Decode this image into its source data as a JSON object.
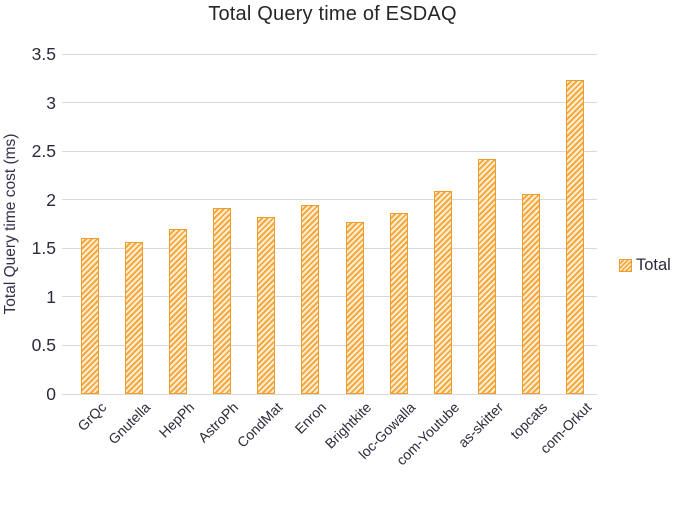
{
  "chart_data": {
    "type": "bar",
    "title": "Total Query time of ESDAQ",
    "ylabel": "Total Query time cost (ms)",
    "xlabel": "",
    "series_name": "Total",
    "categories": [
      "GrQc",
      "Gnutella",
      "HepPh",
      "AstroPh",
      "CondMat",
      "Enron",
      "Brightkite",
      "loc-Gowalla",
      "com-Youtube",
      "as-skitter",
      "topcats",
      "com-Orkut"
    ],
    "values": [
      1.61,
      1.57,
      1.7,
      1.92,
      1.82,
      1.95,
      1.77,
      1.86,
      2.09,
      2.42,
      2.06,
      3.23
    ],
    "ylim": [
      0,
      3.5
    ],
    "yticks": [
      {
        "value": 0,
        "label": "0"
      },
      {
        "value": 0.5,
        "label": "0.5"
      },
      {
        "value": 1,
        "label": "1"
      },
      {
        "value": 1.5,
        "label": "1.5"
      },
      {
        "value": 2,
        "label": "2"
      },
      {
        "value": 2.5,
        "label": "2.5"
      },
      {
        "value": 3,
        "label": "3"
      },
      {
        "value": 3.5,
        "label": "3.5"
      }
    ],
    "grid": true,
    "legend_position": "right",
    "colors": {
      "bar_border": "#ee9d2d",
      "bar_hatch_stripe": "#f6a93e",
      "bar_hatch_background": "#fdeed6",
      "gridline": "#d9d9d9",
      "title_text": "#262626",
      "axis_text": "#2b2b3b"
    }
  }
}
